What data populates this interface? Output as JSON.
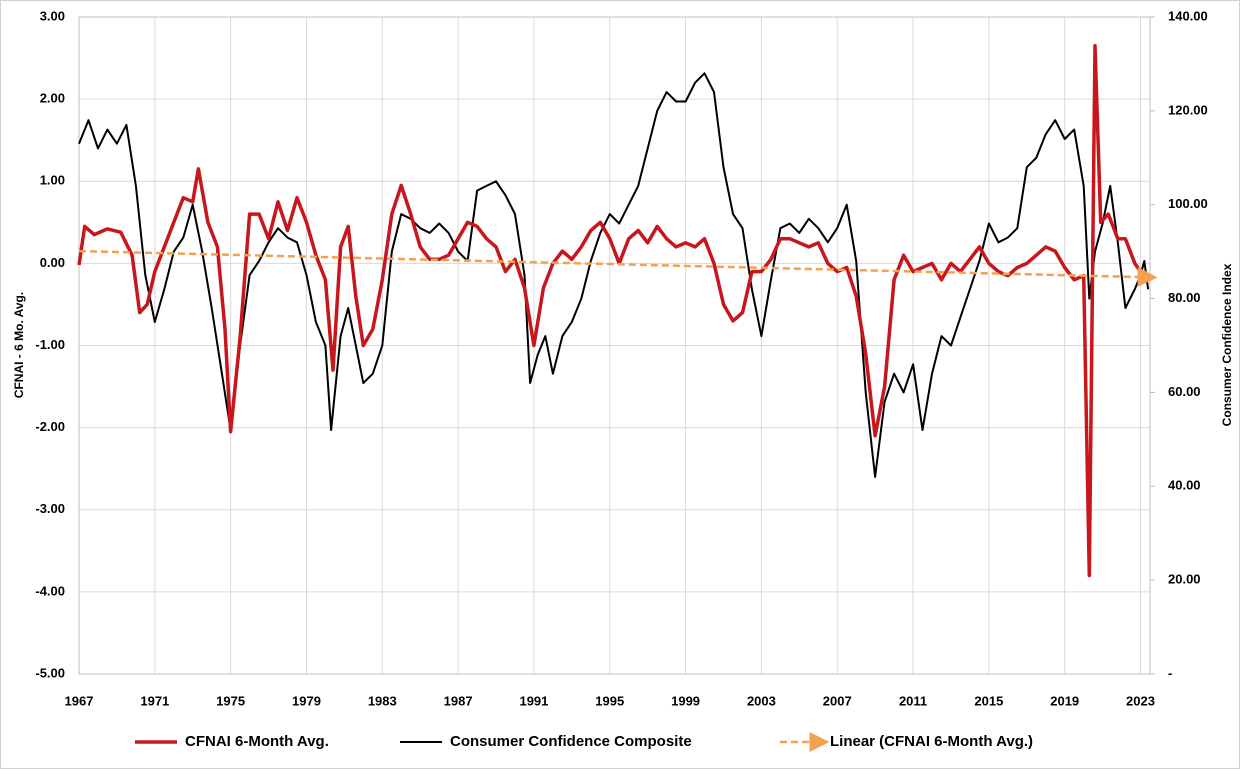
{
  "chart_data": {
    "type": "line",
    "y_label": "CFNAI - 6 Mo. Avg.",
    "y2_label": "Consumer Confidence Index",
    "xlim": [
      1967,
      2023.5
    ],
    "xticks": [
      1967,
      1971,
      1975,
      1979,
      1983,
      1987,
      1991,
      1995,
      1999,
      2003,
      2007,
      2011,
      2015,
      2019,
      2023
    ],
    "ylim": [
      -5,
      3
    ],
    "yticks": [
      {
        "value": -5,
        "label": "-5.00"
      },
      {
        "value": -4,
        "label": "-4.00"
      },
      {
        "value": -3,
        "label": "-3.00"
      },
      {
        "value": -2,
        "label": "-2.00"
      },
      {
        "value": -1,
        "label": "-1.00"
      },
      {
        "value": 0,
        "label": "0.00"
      },
      {
        "value": 1,
        "label": "1.00"
      },
      {
        "value": 2,
        "label": "2.00"
      },
      {
        "value": 3,
        "label": "3.00"
      }
    ],
    "y2lim": [
      0,
      140
    ],
    "y2ticks": [
      {
        "value": 0,
        "label": "-"
      },
      {
        "value": 20,
        "label": "20.00"
      },
      {
        "value": 40,
        "label": "40.00"
      },
      {
        "value": 60,
        "label": "60.00"
      },
      {
        "value": 80,
        "label": "80.00"
      },
      {
        "value": 100,
        "label": "100.00"
      },
      {
        "value": 120,
        "label": "120.00"
      },
      {
        "value": 140,
        "label": "140.00"
      }
    ],
    "grid": true,
    "legend": "bottom",
    "series": [
      {
        "name": "CFNAI 6-Month Avg.",
        "color": "#c8161d",
        "width": 3.5,
        "dash": false,
        "x": [
          1967.0,
          1967.3,
          1967.8,
          1968.5,
          1969.2,
          1969.8,
          1970.2,
          1970.6,
          1971.0,
          1971.5,
          1972.0,
          1972.5,
          1973.0,
          1973.3,
          1973.8,
          1974.3,
          1974.7,
          1975.0,
          1975.5,
          1976.0,
          1976.5,
          1977.0,
          1977.5,
          1978.0,
          1978.5,
          1979.0,
          1979.5,
          1980.0,
          1980.4,
          1980.8,
          1981.2,
          1981.6,
          1982.0,
          1982.5,
          1983.0,
          1983.5,
          1984.0,
          1984.5,
          1985.0,
          1985.5,
          1986.0,
          1986.5,
          1987.0,
          1987.5,
          1988.0,
          1988.5,
          1989.0,
          1989.5,
          1990.0,
          1990.5,
          1991.0,
          1991.5,
          1992.0,
          1992.5,
          1993.0,
          1993.5,
          1994.0,
          1994.5,
          1995.0,
          1995.5,
          1996.0,
          1996.5,
          1997.0,
          1997.5,
          1998.0,
          1998.5,
          1999.0,
          1999.5,
          2000.0,
          2000.5,
          2001.0,
          2001.5,
          2002.0,
          2002.5,
          2003.0,
          2003.5,
          2004.0,
          2004.5,
          2005.0,
          2005.5,
          2006.0,
          2006.5,
          2007.0,
          2007.5,
          2008.0,
          2008.5,
          2009.0,
          2009.5,
          2010.0,
          2010.5,
          2011.0,
          2011.5,
          2012.0,
          2012.5,
          2013.0,
          2013.5,
          2014.0,
          2014.5,
          2015.0,
          2015.5,
          2016.0,
          2016.5,
          2017.0,
          2017.5,
          2018.0,
          2018.5,
          2019.0,
          2019.5,
          2020.0,
          2020.3,
          2020.6,
          2020.9,
          2021.3,
          2021.8,
          2022.2,
          2022.7,
          2023.0,
          2023.3
        ],
        "values": [
          -0.02,
          0.45,
          0.35,
          0.42,
          0.38,
          0.1,
          -0.6,
          -0.5,
          -0.1,
          0.2,
          0.5,
          0.8,
          0.75,
          1.15,
          0.5,
          0.2,
          -0.8,
          -2.05,
          -0.9,
          0.6,
          0.6,
          0.3,
          0.75,
          0.4,
          0.8,
          0.5,
          0.1,
          -0.2,
          -1.3,
          0.2,
          0.45,
          -0.4,
          -1.0,
          -0.8,
          -0.2,
          0.6,
          0.95,
          0.6,
          0.2,
          0.05,
          0.05,
          0.1,
          0.3,
          0.5,
          0.45,
          0.3,
          0.2,
          -0.1,
          0.05,
          -0.3,
          -1.0,
          -0.3,
          0.0,
          0.15,
          0.05,
          0.2,
          0.4,
          0.5,
          0.3,
          0.0,
          0.3,
          0.4,
          0.25,
          0.45,
          0.3,
          0.2,
          0.25,
          0.2,
          0.3,
          0.0,
          -0.5,
          -0.7,
          -0.6,
          -0.1,
          -0.1,
          0.05,
          0.3,
          0.3,
          0.25,
          0.2,
          0.25,
          0.0,
          -0.1,
          -0.05,
          -0.4,
          -1.1,
          -2.1,
          -1.5,
          -0.2,
          0.1,
          -0.1,
          -0.05,
          0.0,
          -0.2,
          0.0,
          -0.1,
          0.05,
          0.2,
          0.0,
          -0.1,
          -0.15,
          -0.05,
          0.0,
          0.1,
          0.2,
          0.15,
          -0.05,
          -0.2,
          -0.15,
          -3.8,
          2.65,
          0.5,
          0.6,
          0.3,
          0.3,
          0.0,
          -0.1,
          -0.15
        ]
      },
      {
        "name": "Consumer Confidence Composite",
        "color": "#000000",
        "width": 2,
        "dash": false,
        "axis": "y2",
        "x": [
          1967.0,
          1967.5,
          1968.0,
          1968.5,
          1969.0,
          1969.5,
          1970.0,
          1970.5,
          1971.0,
          1971.5,
          1972.0,
          1972.5,
          1973.0,
          1973.5,
          1974.0,
          1974.5,
          1975.0,
          1975.5,
          1976.0,
          1976.5,
          1977.0,
          1977.5,
          1978.0,
          1978.5,
          1979.0,
          1979.5,
          1980.0,
          1980.3,
          1980.8,
          1981.2,
          1981.6,
          1982.0,
          1982.5,
          1983.0,
          1983.5,
          1984.0,
          1984.5,
          1985.0,
          1985.5,
          1986.0,
          1986.5,
          1987.0,
          1987.5,
          1988.0,
          1988.5,
          1989.0,
          1989.5,
          1990.0,
          1990.5,
          1990.8,
          1991.2,
          1991.6,
          1992.0,
          1992.5,
          1993.0,
          1993.5,
          1994.0,
          1994.5,
          1995.0,
          1995.5,
          1996.0,
          1996.5,
          1997.0,
          1997.5,
          1998.0,
          1998.5,
          1999.0,
          1999.5,
          2000.0,
          2000.5,
          2001.0,
          2001.5,
          2002.0,
          2002.5,
          2003.0,
          2003.5,
          2004.0,
          2004.5,
          2005.0,
          2005.5,
          2006.0,
          2006.5,
          2007.0,
          2007.5,
          2008.0,
          2008.5,
          2009.0,
          2009.5,
          2010.0,
          2010.5,
          2011.0,
          2011.5,
          2012.0,
          2012.5,
          2013.0,
          2013.5,
          2014.0,
          2014.5,
          2015.0,
          2015.5,
          2016.0,
          2016.5,
          2017.0,
          2017.5,
          2018.0,
          2018.5,
          2019.0,
          2019.5,
          2020.0,
          2020.3,
          2020.6,
          2021.0,
          2021.4,
          2021.8,
          2022.2,
          2022.7,
          2023.0,
          2023.2,
          2023.4
        ],
        "values": [
          113,
          118,
          112,
          116,
          113,
          117,
          104,
          85,
          75,
          82,
          90,
          93,
          100,
          90,
          78,
          65,
          52,
          70,
          85,
          88,
          92,
          95,
          93,
          92,
          85,
          75,
          70,
          52,
          72,
          78,
          70,
          62,
          64,
          70,
          90,
          98,
          97,
          95,
          94,
          96,
          94,
          90,
          88,
          103,
          104,
          105,
          102,
          98,
          85,
          62,
          68,
          72,
          64,
          72,
          75,
          80,
          88,
          94,
          98,
          96,
          100,
          104,
          112,
          120,
          124,
          122,
          122,
          126,
          128,
          124,
          108,
          98,
          95,
          82,
          72,
          84,
          95,
          96,
          94,
          97,
          95,
          92,
          95,
          100,
          88,
          60,
          42,
          58,
          64,
          60,
          66,
          52,
          64,
          72,
          70,
          76,
          82,
          88,
          96,
          92,
          93,
          95,
          108,
          110,
          115,
          118,
          114,
          116,
          104,
          80,
          90,
          96,
          104,
          92,
          78,
          82,
          85,
          88,
          82
        ]
      },
      {
        "name": "Linear (CFNAI 6-Month Avg.)",
        "color": "#f4a14f",
        "width": 2.5,
        "dash": true,
        "x": [
          1967,
          2023.5
        ],
        "values": [
          0.15,
          -0.17
        ]
      }
    ]
  }
}
